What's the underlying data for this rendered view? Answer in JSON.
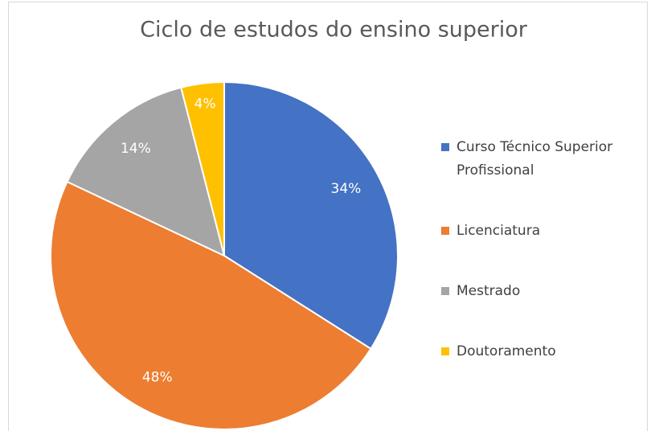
{
  "chart_data": {
    "type": "pie",
    "title": "Ciclo de estudos do ensino superior",
    "categories": [
      "Curso Técnico Superior Profissional",
      "Licenciatura",
      "Mestrado",
      "Doutoramento"
    ],
    "values": [
      34,
      48,
      14,
      4
    ],
    "value_labels": [
      "34%",
      "48%",
      "14%",
      "4%"
    ],
    "colors": [
      "#4472c4",
      "#ed7d31",
      "#a5a5a5",
      "#ffc000"
    ],
    "legend": "right"
  }
}
